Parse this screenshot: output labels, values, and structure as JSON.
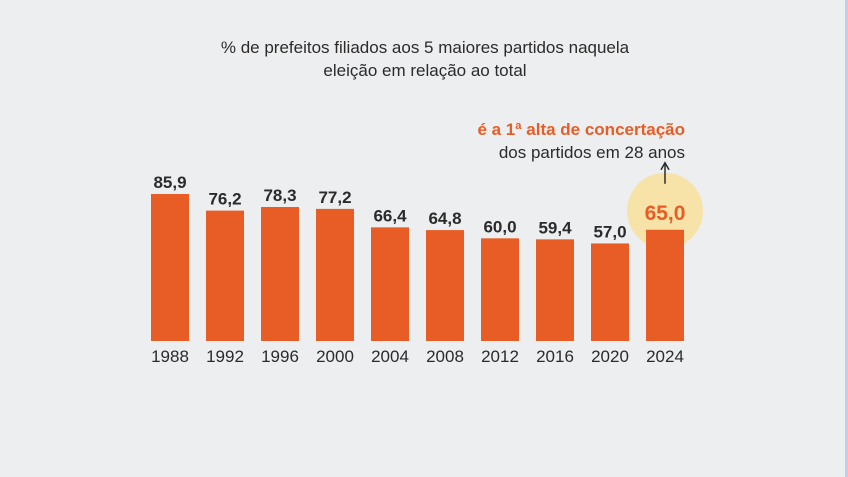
{
  "colors": {
    "background": "#edeef0",
    "bar": "#e85d25",
    "highlight_circle": "#f7e3a8",
    "highlight_text": "#e85d25",
    "text": "#2b2b2b"
  },
  "chart_data": {
    "type": "bar",
    "title": "% de prefeitos filiados aos 5 maiores partidos naquela eleição em relação ao total",
    "title_lines": [
      "% de prefeitos filiados aos 5 maiores partidos naquela",
      "eleição em relação ao total"
    ],
    "categories": [
      "1988",
      "1992",
      "1996",
      "2000",
      "2004",
      "2008",
      "2012",
      "2016",
      "2020",
      "2024"
    ],
    "values": [
      85.9,
      76.2,
      78.3,
      77.2,
      66.4,
      64.8,
      60.0,
      59.4,
      57.0,
      65.0
    ],
    "value_labels": [
      "85,9",
      "76,2",
      "78,3",
      "77,2",
      "66,4",
      "64,8",
      "60,0",
      "59,4",
      "57,0",
      "65,0"
    ],
    "highlight_index": 9,
    "annotation": {
      "highlight_text": "é a 1ª alta de concertação",
      "rest_text": "dos partidos em 28 anos"
    },
    "xlabel": "",
    "ylabel": "",
    "ylim": [
      0,
      85.9
    ],
    "grid": false,
    "legend": "none"
  }
}
